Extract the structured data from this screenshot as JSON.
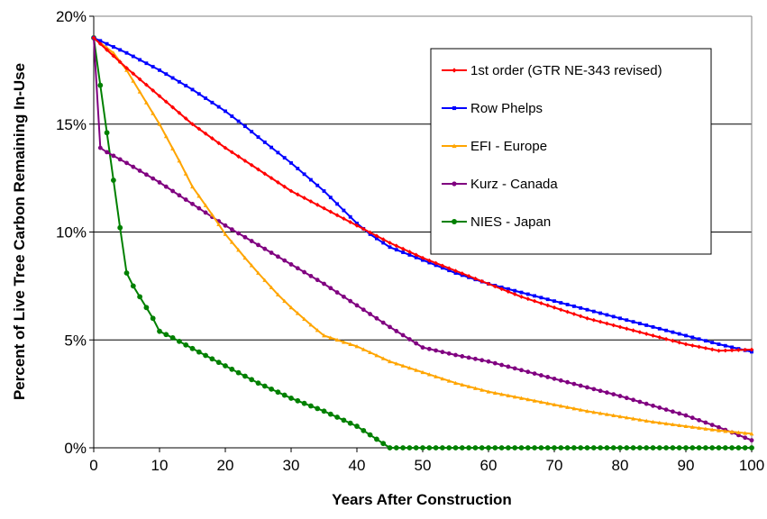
{
  "chart_data": {
    "type": "line",
    "title": "",
    "xlabel": "Years After Construction",
    "ylabel": "Percent of Live Tree Carbon Remaining In-Use",
    "xlim": [
      0,
      100
    ],
    "ylim": [
      0,
      20
    ],
    "x_ticks": [
      "0",
      "10",
      "20",
      "30",
      "40",
      "50",
      "60",
      "70",
      "80",
      "90",
      "100"
    ],
    "y_ticks": [
      "0%",
      "5%",
      "10%",
      "15%",
      "20%"
    ],
    "grid": "horizontal",
    "legend_position": "top-right",
    "series": [
      {
        "name": "1st order (GTR NE-343 revised)",
        "color": "#ff0000",
        "marker": "diamond",
        "points": [
          [
            0,
            19.0
          ],
          [
            5,
            17.6
          ],
          [
            10,
            16.3
          ],
          [
            15,
            15.0
          ],
          [
            20,
            13.9
          ],
          [
            25,
            12.9
          ],
          [
            30,
            11.9
          ],
          [
            35,
            11.1
          ],
          [
            40,
            10.3
          ],
          [
            45,
            9.5
          ],
          [
            50,
            8.8
          ],
          [
            55,
            8.2
          ],
          [
            60,
            7.6
          ],
          [
            65,
            7.0
          ],
          [
            70,
            6.5
          ],
          [
            75,
            6.0
          ],
          [
            80,
            5.6
          ],
          [
            85,
            5.2
          ],
          [
            90,
            4.8
          ],
          [
            95,
            4.5
          ],
          [
            100,
            4.55
          ]
        ]
      },
      {
        "name": "Row Phelps",
        "color": "#0000ff",
        "marker": "square",
        "points": [
          [
            0,
            19.0
          ],
          [
            5,
            18.3
          ],
          [
            10,
            17.5
          ],
          [
            15,
            16.6
          ],
          [
            20,
            15.6
          ],
          [
            23,
            14.9
          ],
          [
            25,
            14.4
          ],
          [
            30,
            13.2
          ],
          [
            35,
            11.9
          ],
          [
            40,
            10.4
          ],
          [
            42,
            9.9
          ],
          [
            45,
            9.3
          ],
          [
            50,
            8.7
          ],
          [
            55,
            8.1
          ],
          [
            60,
            7.6
          ],
          [
            65,
            7.2
          ],
          [
            70,
            6.8
          ],
          [
            75,
            6.4
          ],
          [
            80,
            6.0
          ],
          [
            85,
            5.6
          ],
          [
            90,
            5.2
          ],
          [
            95,
            4.8
          ],
          [
            100,
            4.45
          ]
        ]
      },
      {
        "name": "EFI - Europe",
        "color": "#ffa500",
        "marker": "triangle",
        "points": [
          [
            0,
            19.0
          ],
          [
            3,
            18.3
          ],
          [
            5,
            17.5
          ],
          [
            8,
            16.0
          ],
          [
            10,
            15.0
          ],
          [
            13,
            13.3
          ],
          [
            15,
            12.1
          ],
          [
            18,
            10.8
          ],
          [
            20,
            9.9
          ],
          [
            23,
            8.8
          ],
          [
            25,
            8.1
          ],
          [
            28,
            7.1
          ],
          [
            30,
            6.5
          ],
          [
            33,
            5.7
          ],
          [
            35,
            5.2
          ],
          [
            40,
            4.7
          ],
          [
            45,
            4.0
          ],
          [
            50,
            3.5
          ],
          [
            55,
            3.0
          ],
          [
            60,
            2.6
          ],
          [
            65,
            2.3
          ],
          [
            70,
            2.0
          ],
          [
            75,
            1.7
          ],
          [
            80,
            1.45
          ],
          [
            85,
            1.2
          ],
          [
            90,
            1.0
          ],
          [
            95,
            0.8
          ],
          [
            100,
            0.65
          ]
        ]
      },
      {
        "name": "Kurz - Canada",
        "color": "#800080",
        "marker": "circle",
        "points": [
          [
            0,
            19.0
          ],
          [
            1,
            13.9
          ],
          [
            2,
            13.7
          ],
          [
            5,
            13.2
          ],
          [
            10,
            12.3
          ],
          [
            15,
            11.3
          ],
          [
            20,
            10.3
          ],
          [
            25,
            9.4
          ],
          [
            30,
            8.5
          ],
          [
            35,
            7.6
          ],
          [
            40,
            6.6
          ],
          [
            45,
            5.6
          ],
          [
            50,
            4.65
          ],
          [
            55,
            4.3
          ],
          [
            60,
            4.0
          ],
          [
            65,
            3.6
          ],
          [
            70,
            3.2
          ],
          [
            75,
            2.8
          ],
          [
            80,
            2.4
          ],
          [
            85,
            1.95
          ],
          [
            90,
            1.5
          ],
          [
            95,
            0.95
          ],
          [
            100,
            0.35
          ]
        ]
      },
      {
        "name": "NIES - Japan",
        "color": "#008000",
        "marker": "circle",
        "points": [
          [
            0,
            19.0
          ],
          [
            1,
            16.8
          ],
          [
            2,
            14.6
          ],
          [
            3,
            12.4
          ],
          [
            4,
            10.2
          ],
          [
            5,
            8.1
          ],
          [
            6,
            7.5
          ],
          [
            7,
            7.0
          ],
          [
            8,
            6.5
          ],
          [
            9,
            6.0
          ],
          [
            10,
            5.4
          ],
          [
            12,
            5.1
          ],
          [
            15,
            4.6
          ],
          [
            20,
            3.8
          ],
          [
            25,
            3.0
          ],
          [
            30,
            2.3
          ],
          [
            35,
            1.7
          ],
          [
            40,
            1.0
          ],
          [
            45,
            0.0
          ],
          [
            50,
            0.0
          ],
          [
            60,
            0.0
          ],
          [
            70,
            0.0
          ],
          [
            80,
            0.0
          ],
          [
            90,
            0.0
          ],
          [
            100,
            0.0
          ]
        ]
      }
    ]
  }
}
